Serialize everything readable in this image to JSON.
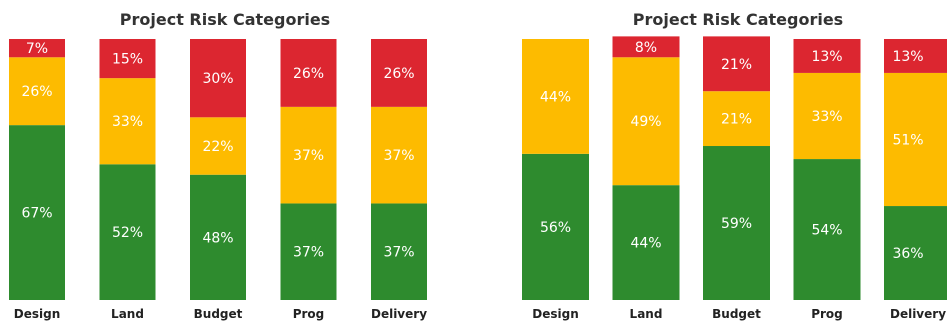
{
  "chart_data": [
    {
      "type": "bar",
      "stacked": true,
      "percent": true,
      "title": "Project Risk Categories",
      "categories": [
        "Design",
        "Land",
        "Budget",
        "Prog",
        "Delivery"
      ],
      "series": [
        {
          "color": "#2e8b2e",
          "values": [
            67,
            52,
            48,
            37,
            37
          ]
        },
        {
          "color": "#fdbb00",
          "values": [
            26,
            33,
            22,
            37,
            37
          ]
        },
        {
          "color": "#dc2630",
          "values": [
            7,
            15,
            30,
            26,
            26
          ]
        }
      ],
      "ylim": [
        0,
        100
      ],
      "grid": false,
      "legend": "none"
    },
    {
      "type": "bar",
      "stacked": true,
      "percent": true,
      "title": "Project Risk Categories",
      "categories": [
        "Design",
        "Land",
        "Budget",
        "Prog",
        "Delivery"
      ],
      "series": [
        {
          "color": "#2e8b2e",
          "values": [
            56,
            44,
            59,
            54,
            36
          ]
        },
        {
          "color": "#fdbb00",
          "values": [
            44,
            49,
            21,
            33,
            51
          ]
        },
        {
          "color": "#dc2630",
          "values": [
            0,
            8,
            21,
            13,
            13
          ]
        }
      ],
      "ylim": [
        0,
        100
      ],
      "grid": false,
      "legend": "none"
    }
  ]
}
